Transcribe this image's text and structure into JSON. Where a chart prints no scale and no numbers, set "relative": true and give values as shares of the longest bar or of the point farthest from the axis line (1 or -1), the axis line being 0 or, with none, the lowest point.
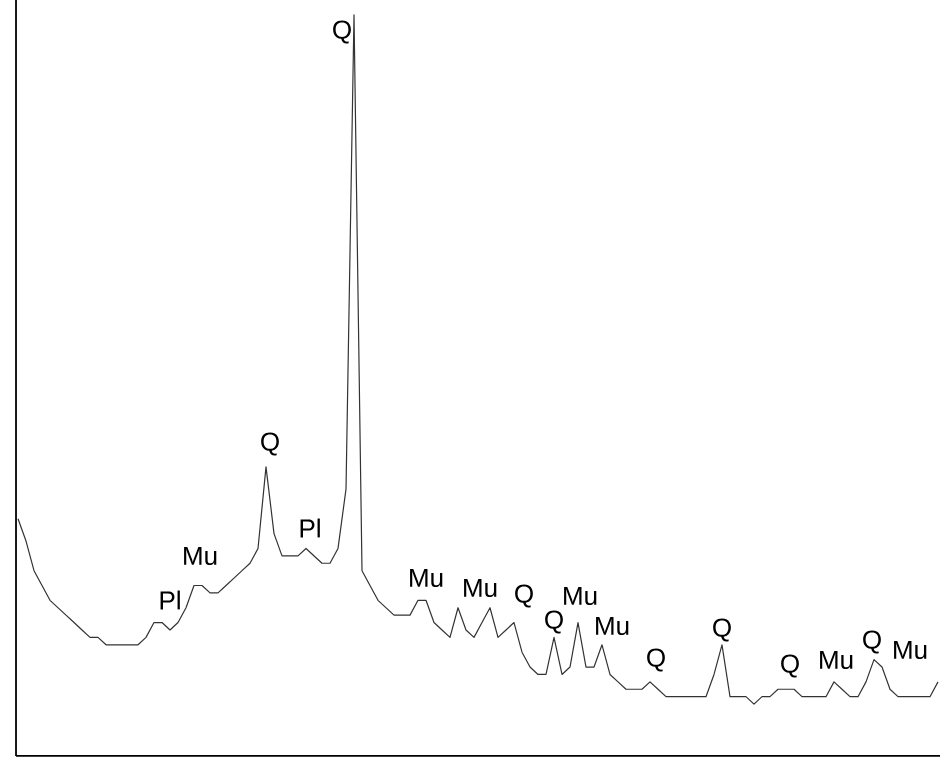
{
  "chart_data": {
    "type": "line",
    "relative": true,
    "categories": [
      null,
      null,
      null,
      null,
      null,
      null,
      null,
      null,
      null,
      null,
      null,
      null,
      null,
      null,
      null,
      null,
      null,
      null,
      null,
      null,
      null,
      null,
      null,
      null,
      null,
      null,
      null,
      null,
      null,
      null,
      null,
      null,
      null,
      null,
      null,
      null,
      null,
      null,
      null,
      null,
      null,
      null,
      null,
      null,
      null,
      null,
      null,
      null,
      null,
      null,
      null,
      null,
      null,
      null,
      null,
      null,
      null,
      null,
      null,
      null,
      null,
      null,
      null,
      null,
      null,
      null,
      null,
      null,
      null,
      null,
      null,
      null,
      null,
      null,
      null,
      null,
      null,
      null,
      null,
      null,
      null,
      null,
      null,
      null,
      null,
      null,
      null,
      null,
      null,
      null,
      null,
      null,
      null,
      null,
      null,
      null,
      null,
      null,
      null,
      null,
      null,
      null,
      null,
      null,
      null,
      null,
      null,
      null,
      null,
      null,
      null,
      null,
      null,
      null,
      null,
      null
    ],
    "series": [
      {
        "color": "#333333",
        "values": [
          0.32,
          0.29,
          0.25,
          0.23,
          0.21,
          0.2,
          0.19,
          0.18,
          0.17,
          0.16,
          0.16,
          0.15,
          0.15,
          0.15,
          0.15,
          0.15,
          0.16,
          0.18,
          0.18,
          0.17,
          0.18,
          0.2,
          0.23,
          0.23,
          0.22,
          0.22,
          0.23,
          0.24,
          0.25,
          0.26,
          0.28,
          0.39,
          0.3,
          0.27,
          0.27,
          0.27,
          0.28,
          0.27,
          0.26,
          0.26,
          0.28,
          0.36,
          1,
          0.25,
          0.23,
          0.21,
          0.2,
          0.19,
          0.19,
          0.19,
          0.21,
          0.21,
          0.18,
          0.17,
          0.16,
          0.2,
          0.17,
          0.16,
          0.18,
          0.2,
          0.16,
          0.17,
          0.18,
          0.14,
          0.12,
          0.11,
          0.11,
          0.16,
          0.11,
          0.12,
          0.18,
          0.12,
          0.12,
          0.15,
          0.11,
          0.1,
          0.09,
          0.09,
          0.09,
          0.1,
          0.09,
          0.08,
          0.08,
          0.08,
          0.08,
          0.08,
          0.08,
          0.11,
          0.15,
          0.08,
          0.08,
          0.08,
          0.07,
          0.08,
          0.08,
          0.09,
          0.09,
          0.09,
          0.08,
          0.08,
          0.08,
          0.08,
          0.1,
          0.09,
          0.08,
          0.08,
          0.1,
          0.13,
          0.12,
          0.09,
          0.08,
          0.08,
          0.08,
          0.08,
          0.08,
          0.1
        ]
      }
    ],
    "annotations": [
      "Pl",
      "Mu",
      "Q",
      "Pl",
      "Q",
      "Mu",
      "Mu",
      "Q",
      "Mu",
      "Q",
      "Mu",
      "Q",
      "Q",
      "Q",
      "Mu",
      "Q",
      "Mu"
    ]
  }
}
